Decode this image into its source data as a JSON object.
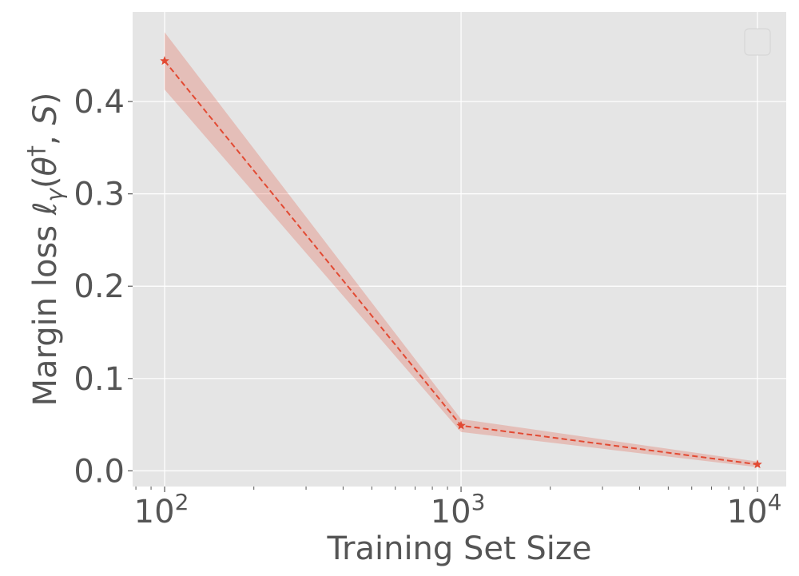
{
  "chart_data": {
    "type": "line",
    "title": "",
    "xlabel": "Training Set Size",
    "ylabel": {
      "prefix": "Margin loss ",
      "ell": "ℓ",
      "sub": "γ",
      "open": "(",
      "theta": "θ",
      "sup": "†",
      "comma": ", ",
      "s": "S",
      "close": ")"
    },
    "xscale": "log",
    "xlim": [
      78,
      12500
    ],
    "ylim": [
      -0.017,
      0.497
    ],
    "grid": true,
    "legend": {
      "placement": "top-right",
      "entries": []
    },
    "colors": {
      "plot_bg": "#e5e5e5",
      "grid": "#ffffff",
      "line": "#e24a33",
      "band": "#e24a33",
      "text": "#555555"
    },
    "x_ticks": [
      {
        "value": 100,
        "base": "10",
        "exp": "2"
      },
      {
        "value": 1000,
        "base": "10",
        "exp": "3"
      },
      {
        "value": 10000,
        "base": "10",
        "exp": "4"
      }
    ],
    "y_ticks": [
      {
        "value": 0.0,
        "label": "0.0"
      },
      {
        "value": 0.1,
        "label": "0.1"
      },
      {
        "value": 0.2,
        "label": "0.2"
      },
      {
        "value": 0.3,
        "label": "0.3"
      },
      {
        "value": 0.4,
        "label": "0.4"
      }
    ],
    "series": [
      {
        "x": [
          100,
          1000,
          10000
        ],
        "y": [
          0.444,
          0.049,
          0.007
        ],
        "y_low": [
          0.413,
          0.042,
          0.004
        ],
        "y_high": [
          0.475,
          0.056,
          0.01
        ],
        "linestyle": "dashed",
        "marker": "star"
      }
    ]
  }
}
